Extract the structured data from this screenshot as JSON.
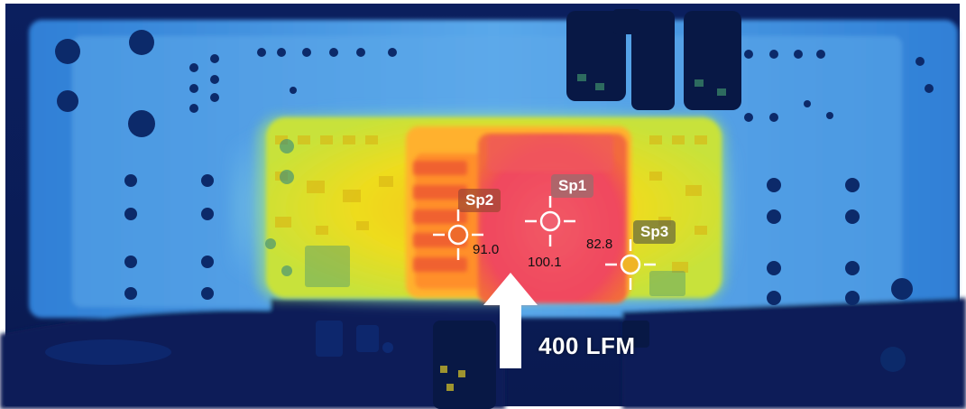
{
  "image": {
    "subject": "thermal-camera image of a circuit board",
    "palette": {
      "background_blue": "#1d63c9",
      "board_light": "#b8dcf2",
      "dark_components": "#0a1f55",
      "warm_yellow": "#f2e21c",
      "hot_orange": "#ff9a22",
      "hottest_red": "#f0455a"
    }
  },
  "measurement_spots": [
    {
      "id": "Sp1",
      "label": "Sp1",
      "value": "100.1",
      "marker_color": "#f06070"
    },
    {
      "id": "Sp2",
      "label": "Sp2",
      "value": "91.0",
      "marker_color": "#ee6a2c"
    },
    {
      "id": "Sp3",
      "label": "Sp3",
      "value": "82.8",
      "marker_color": "#f0b426"
    }
  ],
  "airflow": {
    "label": "400 LFM",
    "direction": "up",
    "icon": "arrow-up-icon"
  }
}
